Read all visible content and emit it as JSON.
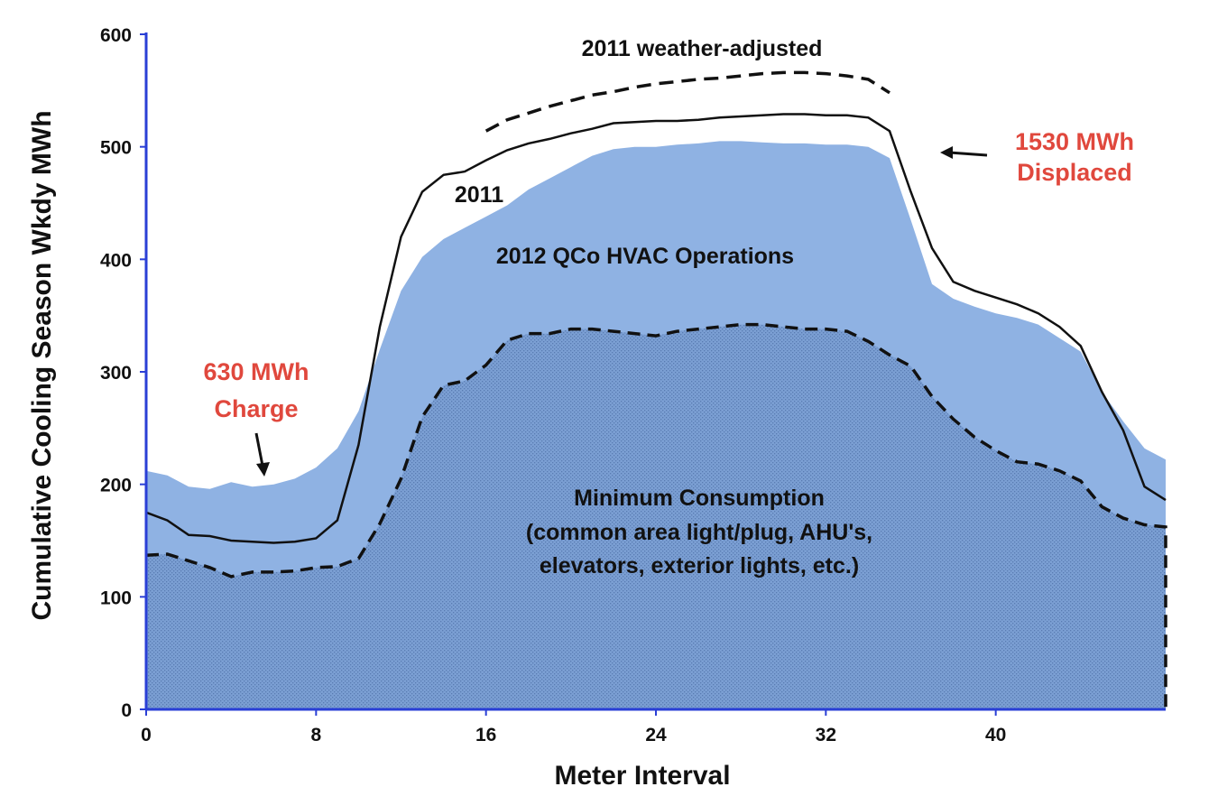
{
  "chart_data": {
    "type": "area",
    "title": "",
    "xlabel": "Meter Interval",
    "ylabel": "Cumulative Cooling Season Wkdy MWh",
    "xlim": [
      0,
      48
    ],
    "ylim": [
      0,
      600
    ],
    "x_ticks": [
      0,
      8,
      16,
      24,
      32,
      40
    ],
    "y_ticks": [
      0,
      100,
      200,
      300,
      400,
      500,
      600
    ],
    "colors": {
      "area_fill": "#8fb2e3",
      "minimum_fill": "#7b9fd3",
      "axis": "#2a3fd6",
      "annotation_red": "#e0483d",
      "text": "#111111"
    },
    "series": [
      {
        "name": "2012 QCo HVAC Operations",
        "style": "filled-area",
        "x": [
          0,
          1,
          2,
          3,
          4,
          5,
          6,
          7,
          8,
          9,
          10,
          11,
          12,
          13,
          14,
          15,
          16,
          17,
          18,
          19,
          20,
          21,
          22,
          23,
          24,
          25,
          26,
          27,
          28,
          29,
          30,
          31,
          32,
          33,
          34,
          35,
          36,
          37,
          38,
          39,
          40,
          41,
          42,
          43,
          44,
          45,
          46,
          47,
          48
        ],
        "values": [
          212,
          208,
          198,
          196,
          202,
          198,
          200,
          205,
          215,
          232,
          265,
          320,
          372,
          402,
          418,
          428,
          438,
          448,
          462,
          472,
          482,
          492,
          498,
          500,
          500,
          502,
          503,
          505,
          505,
          504,
          503,
          503,
          502,
          502,
          500,
          490,
          435,
          378,
          365,
          358,
          352,
          348,
          342,
          330,
          318,
          282,
          256,
          232,
          222
        ]
      },
      {
        "name": "2011",
        "style": "solid-line",
        "x": [
          0,
          1,
          2,
          3,
          4,
          5,
          6,
          7,
          8,
          9,
          10,
          11,
          12,
          13,
          14,
          15,
          16,
          17,
          18,
          19,
          20,
          21,
          22,
          23,
          24,
          25,
          26,
          27,
          28,
          29,
          30,
          31,
          32,
          33,
          34,
          35,
          36,
          37,
          38,
          39,
          40,
          41,
          42,
          43,
          44,
          45,
          46,
          47,
          48
        ],
        "values": [
          175,
          168,
          155,
          154,
          150,
          149,
          148,
          149,
          152,
          168,
          235,
          340,
          420,
          460,
          475,
          478,
          488,
          497,
          503,
          507,
          512,
          516,
          521,
          522,
          523,
          523,
          524,
          526,
          527,
          528,
          529,
          529,
          528,
          528,
          526,
          514,
          460,
          410,
          380,
          372,
          366,
          360,
          352,
          340,
          323,
          282,
          248,
          198,
          186
        ]
      },
      {
        "name": "2011 weather-adjusted",
        "style": "dashed-line",
        "x": [
          16,
          17,
          18,
          19,
          20,
          21,
          22,
          23,
          24,
          25,
          26,
          27,
          28,
          29,
          30,
          31,
          32,
          33,
          34,
          35
        ],
        "values": [
          514,
          524,
          530,
          536,
          541,
          546,
          549,
          553,
          556,
          558,
          560,
          561,
          563,
          565,
          566,
          566,
          565,
          563,
          560,
          548
        ]
      },
      {
        "name": "Minimum Consumption",
        "style": "dashed-dotted-area",
        "x": [
          0,
          1,
          2,
          3,
          4,
          5,
          6,
          7,
          8,
          9,
          10,
          11,
          12,
          13,
          14,
          15,
          16,
          17,
          18,
          19,
          20,
          21,
          22,
          23,
          24,
          25,
          26,
          27,
          28,
          29,
          30,
          31,
          32,
          33,
          34,
          35,
          36,
          37,
          38,
          39,
          40,
          41,
          42,
          43,
          44,
          45,
          46,
          47,
          48
        ],
        "values": [
          137,
          138,
          132,
          126,
          118,
          122,
          122,
          123,
          126,
          127,
          134,
          165,
          205,
          260,
          288,
          292,
          306,
          328,
          334,
          334,
          338,
          338,
          336,
          334,
          332,
          336,
          338,
          340,
          342,
          342,
          340,
          338,
          338,
          336,
          327,
          315,
          305,
          278,
          258,
          242,
          230,
          220,
          218,
          212,
          203,
          180,
          170,
          164,
          162
        ]
      }
    ],
    "annotations": {
      "weather_adjusted": "2011 weather-adjusted",
      "series_2011": "2011",
      "hvac_ops": "2012 QCo HVAC Operations",
      "displaced_line1": "1530 MWh",
      "displaced_line2": "Displaced",
      "charge_line1": "630 MWh",
      "charge_line2": "Charge",
      "min_line1": "Minimum Consumption",
      "min_line2": "(common area light/plug, AHU's,",
      "min_line3": "elevators, exterior lights, etc.)"
    }
  }
}
